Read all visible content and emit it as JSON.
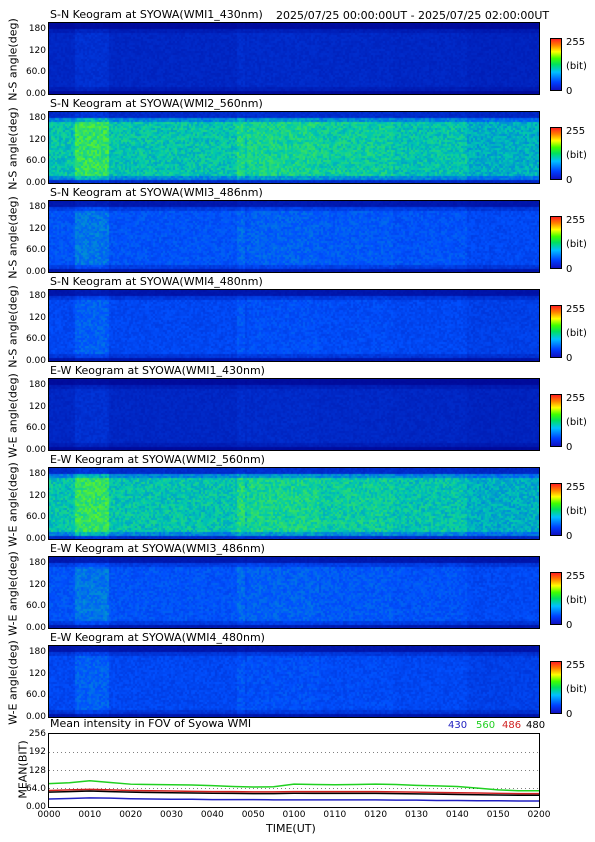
{
  "header": {
    "range": "2025/07/25 00:00:00UT - 2025/07/25 02:00:00UT"
  },
  "colorbar": {
    "max": "255",
    "unit": "(bit)",
    "min": "0"
  },
  "keograms": [
    {
      "title": "S-N Keogram at SYOWA(WMI1_430nm)",
      "ylabel": "N-S angle(deg)",
      "level": 0.12
    },
    {
      "title": "S-N Keogram at SYOWA(WMI2_560nm)",
      "ylabel": "N-S angle(deg)",
      "level": 0.45
    },
    {
      "title": "S-N Keogram at SYOWA(WMI3_486nm)",
      "ylabel": "N-S angle(deg)",
      "level": 0.25
    },
    {
      "title": "S-N Keogram at SYOWA(WMI4_480nm)",
      "ylabel": "N-S angle(deg)",
      "level": 0.22
    },
    {
      "title": "E-W Keogram at SYOWA(WMI1_430nm)",
      "ylabel": "W-E angle(deg)",
      "level": 0.12
    },
    {
      "title": "E-W Keogram at SYOWA(WMI2_560nm)",
      "ylabel": "W-E angle(deg)",
      "level": 0.45
    },
    {
      "title": "E-W Keogram at SYOWA(WMI3_486nm)",
      "ylabel": "W-E angle(deg)",
      "level": 0.25
    },
    {
      "title": "E-W Keogram at SYOWA(WMI4_480nm)",
      "ylabel": "W-E angle(deg)",
      "level": 0.22
    }
  ],
  "keogram_yticks": [
    "180",
    "120",
    "60.0",
    "0.00"
  ],
  "chart_data": {
    "type": "line",
    "title": "Mean intensity in FOV of Syowa WMI",
    "xlabel": "TIME(UT)",
    "ylabel": "MEAN(BIT)",
    "ylim": [
      0,
      256
    ],
    "yticks": [
      "256",
      "192",
      "128",
      "64.0",
      "0.00"
    ],
    "xticks": [
      "0000",
      "0010",
      "0020",
      "0030",
      "0040",
      "0050",
      "0100",
      "0110",
      "0120",
      "0130",
      "0140",
      "0150",
      "0200"
    ],
    "x": [
      0,
      5,
      10,
      15,
      20,
      25,
      30,
      35,
      40,
      45,
      50,
      55,
      60,
      65,
      70,
      75,
      80,
      85,
      90,
      95,
      100,
      105,
      110,
      115,
      120
    ],
    "series": [
      {
        "name": "430",
        "color": "#2020c0",
        "values": [
          28,
          30,
          32,
          31,
          29,
          28,
          27,
          27,
          26,
          26,
          26,
          25,
          25,
          25,
          25,
          25,
          25,
          24,
          24,
          23,
          23,
          22,
          22,
          21,
          21
        ]
      },
      {
        "name": "560",
        "color": "#20d020",
        "values": [
          82,
          85,
          92,
          86,
          80,
          79,
          78,
          77,
          75,
          72,
          70,
          71,
          80,
          79,
          78,
          79,
          80,
          79,
          76,
          74,
          72,
          66,
          60,
          57,
          57
        ]
      },
      {
        "name": "486",
        "color": "#d02020",
        "values": [
          58,
          60,
          62,
          60,
          58,
          57,
          56,
          55,
          54,
          54,
          53,
          53,
          54,
          54,
          54,
          54,
          54,
          53,
          52,
          51,
          50,
          49,
          48,
          47,
          47
        ]
      },
      {
        "name": "480",
        "color": "#000000",
        "values": [
          52,
          54,
          56,
          54,
          52,
          51,
          50,
          49,
          48,
          48,
          47,
          47,
          48,
          48,
          48,
          48,
          48,
          47,
          46,
          45,
          44,
          43,
          42,
          41,
          41
        ]
      }
    ]
  }
}
